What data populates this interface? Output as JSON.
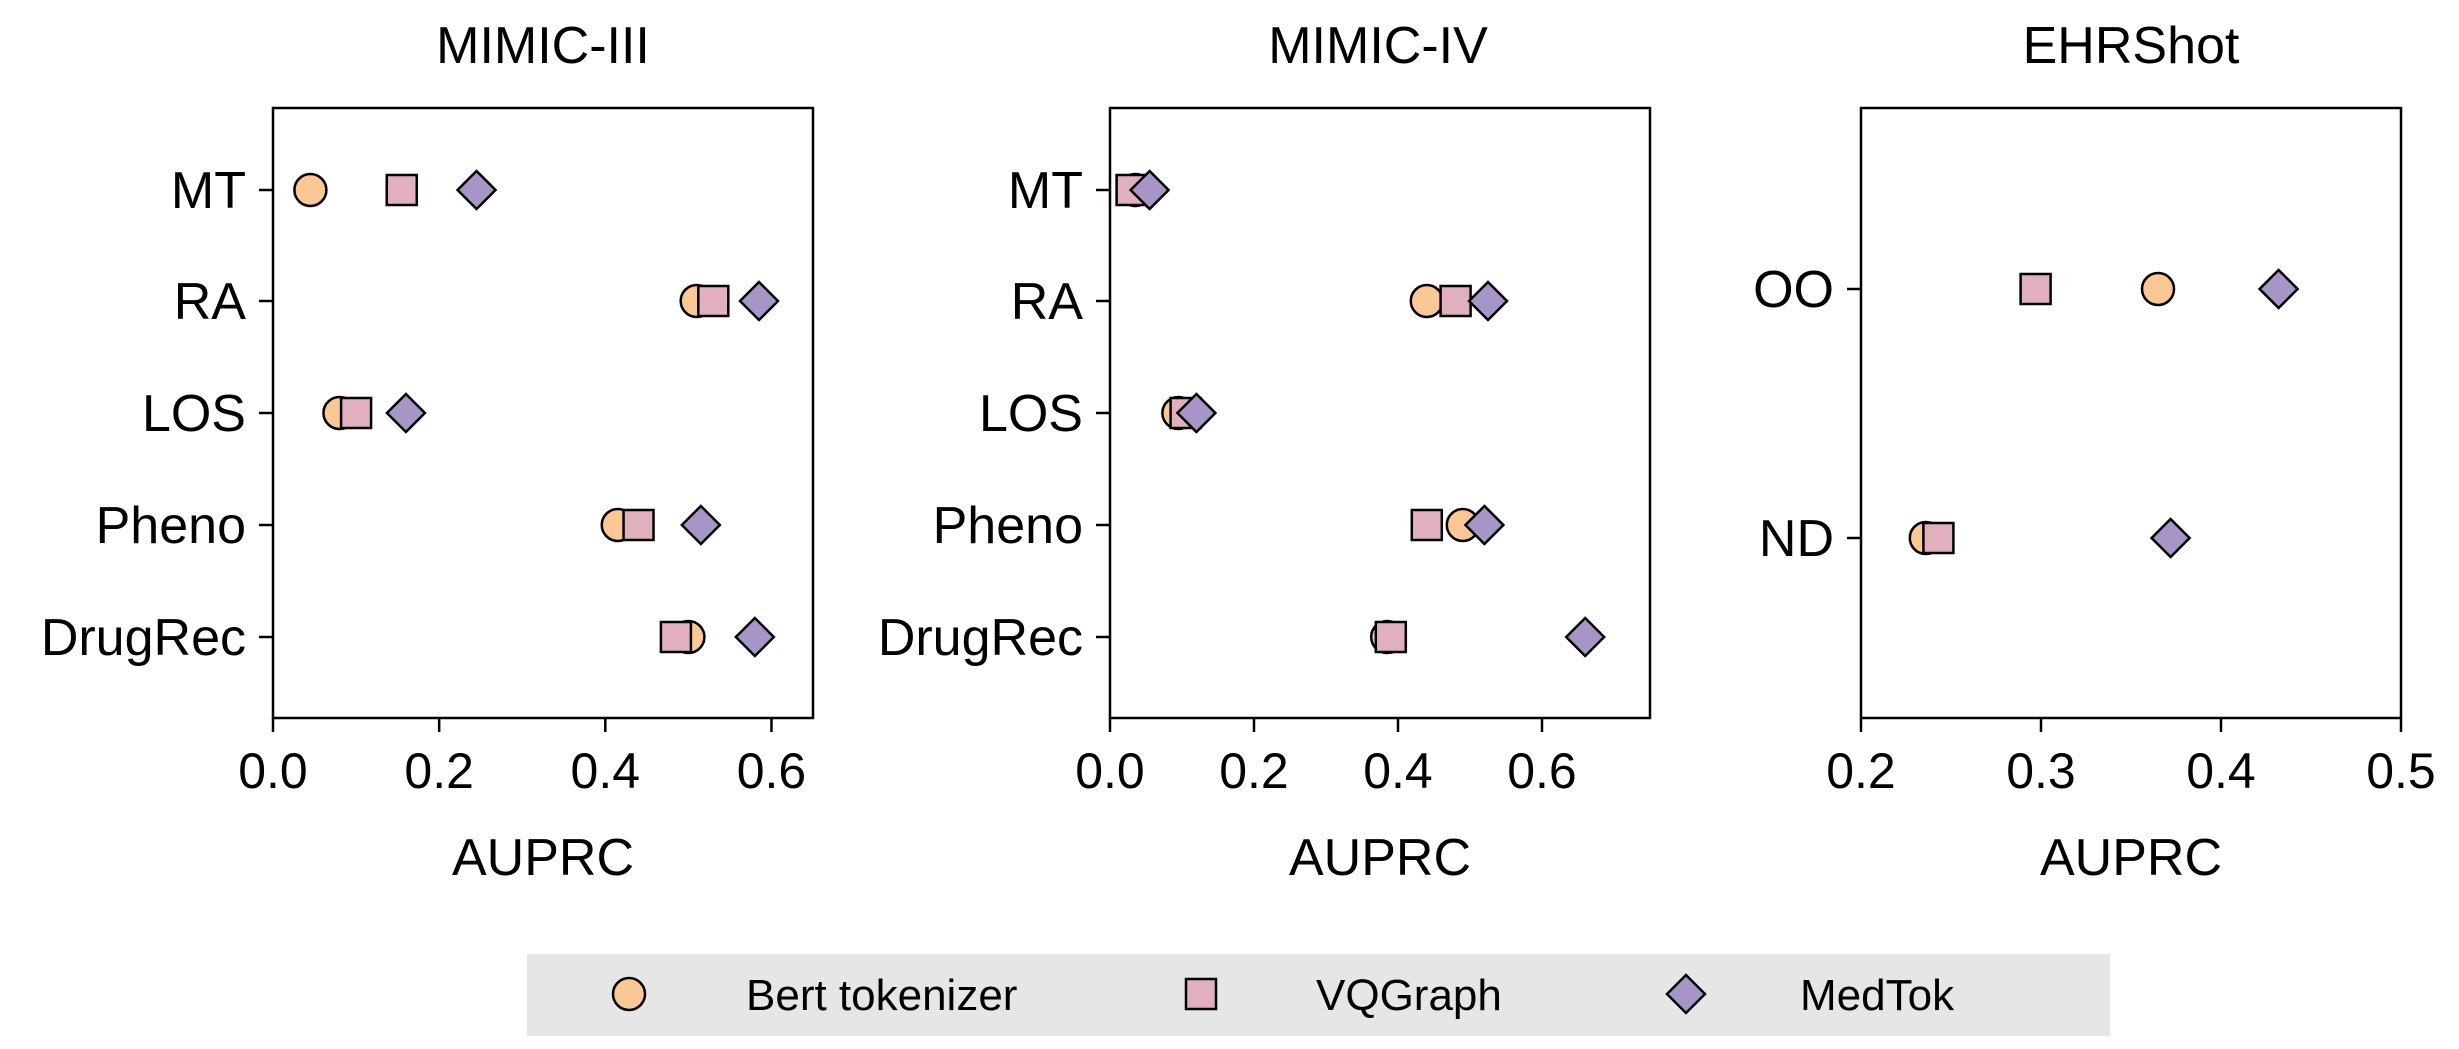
{
  "colors": {
    "Bert tokenizer": "#FBC895",
    "VQGraph": "#E0B0BE",
    "MedTok": "#A895C8"
  },
  "chart_data": [
    {
      "type": "scatter",
      "title": "MIMIC-III",
      "xlabel": "AUPRC",
      "xlim": [
        0.0,
        0.65
      ],
      "xticks": [
        "0.0",
        "0.2",
        "0.4",
        "0.6"
      ],
      "categories": [
        "MT",
        "RA",
        "LOS",
        "Pheno",
        "DrugRec"
      ],
      "series": [
        {
          "name": "Bert tokenizer",
          "marker": "circle",
          "values": [
            0.045,
            0.51,
            0.08,
            0.415,
            0.5
          ]
        },
        {
          "name": "VQGraph",
          "marker": "square",
          "values": [
            0.155,
            0.53,
            0.1,
            0.44,
            0.485
          ]
        },
        {
          "name": "MedTok",
          "marker": "diamond",
          "values": [
            0.245,
            0.585,
            0.16,
            0.515,
            0.58
          ]
        }
      ]
    },
    {
      "type": "scatter",
      "title": "MIMIC-IV",
      "xlabel": "AUPRC",
      "xlim": [
        0.0,
        0.75
      ],
      "xticks": [
        "0.0",
        "0.2",
        "0.4",
        "0.6"
      ],
      "categories": [
        "MT",
        "RA",
        "LOS",
        "Pheno",
        "DrugRec"
      ],
      "series": [
        {
          "name": "Bert tokenizer",
          "marker": "circle",
          "values": [
            0.035,
            0.44,
            0.095,
            0.49,
            0.385
          ]
        },
        {
          "name": "VQGraph",
          "marker": "square",
          "values": [
            0.03,
            0.48,
            0.105,
            0.44,
            0.39
          ]
        },
        {
          "name": "MedTok",
          "marker": "diamond",
          "values": [
            0.055,
            0.525,
            0.12,
            0.52,
            0.66
          ]
        }
      ]
    },
    {
      "type": "scatter",
      "title": "EHRShot",
      "xlabel": "AUPRC",
      "xlim": [
        0.2,
        0.5
      ],
      "xticks": [
        "0.2",
        "0.3",
        "0.4",
        "0.5"
      ],
      "categories": [
        "OO",
        "ND"
      ],
      "series": [
        {
          "name": "Bert tokenizer",
          "marker": "circle",
          "values": [
            0.365,
            0.236
          ]
        },
        {
          "name": "VQGraph",
          "marker": "square",
          "values": [
            0.297,
            0.243
          ]
        },
        {
          "name": "MedTok",
          "marker": "diamond",
          "values": [
            0.432,
            0.372
          ]
        }
      ]
    }
  ],
  "legend": {
    "placement": "bottom",
    "entries": [
      {
        "label": "Bert tokenizer",
        "marker": "circle"
      },
      {
        "label": "VQGraph",
        "marker": "square"
      },
      {
        "label": "MedTok",
        "marker": "diamond"
      }
    ]
  }
}
